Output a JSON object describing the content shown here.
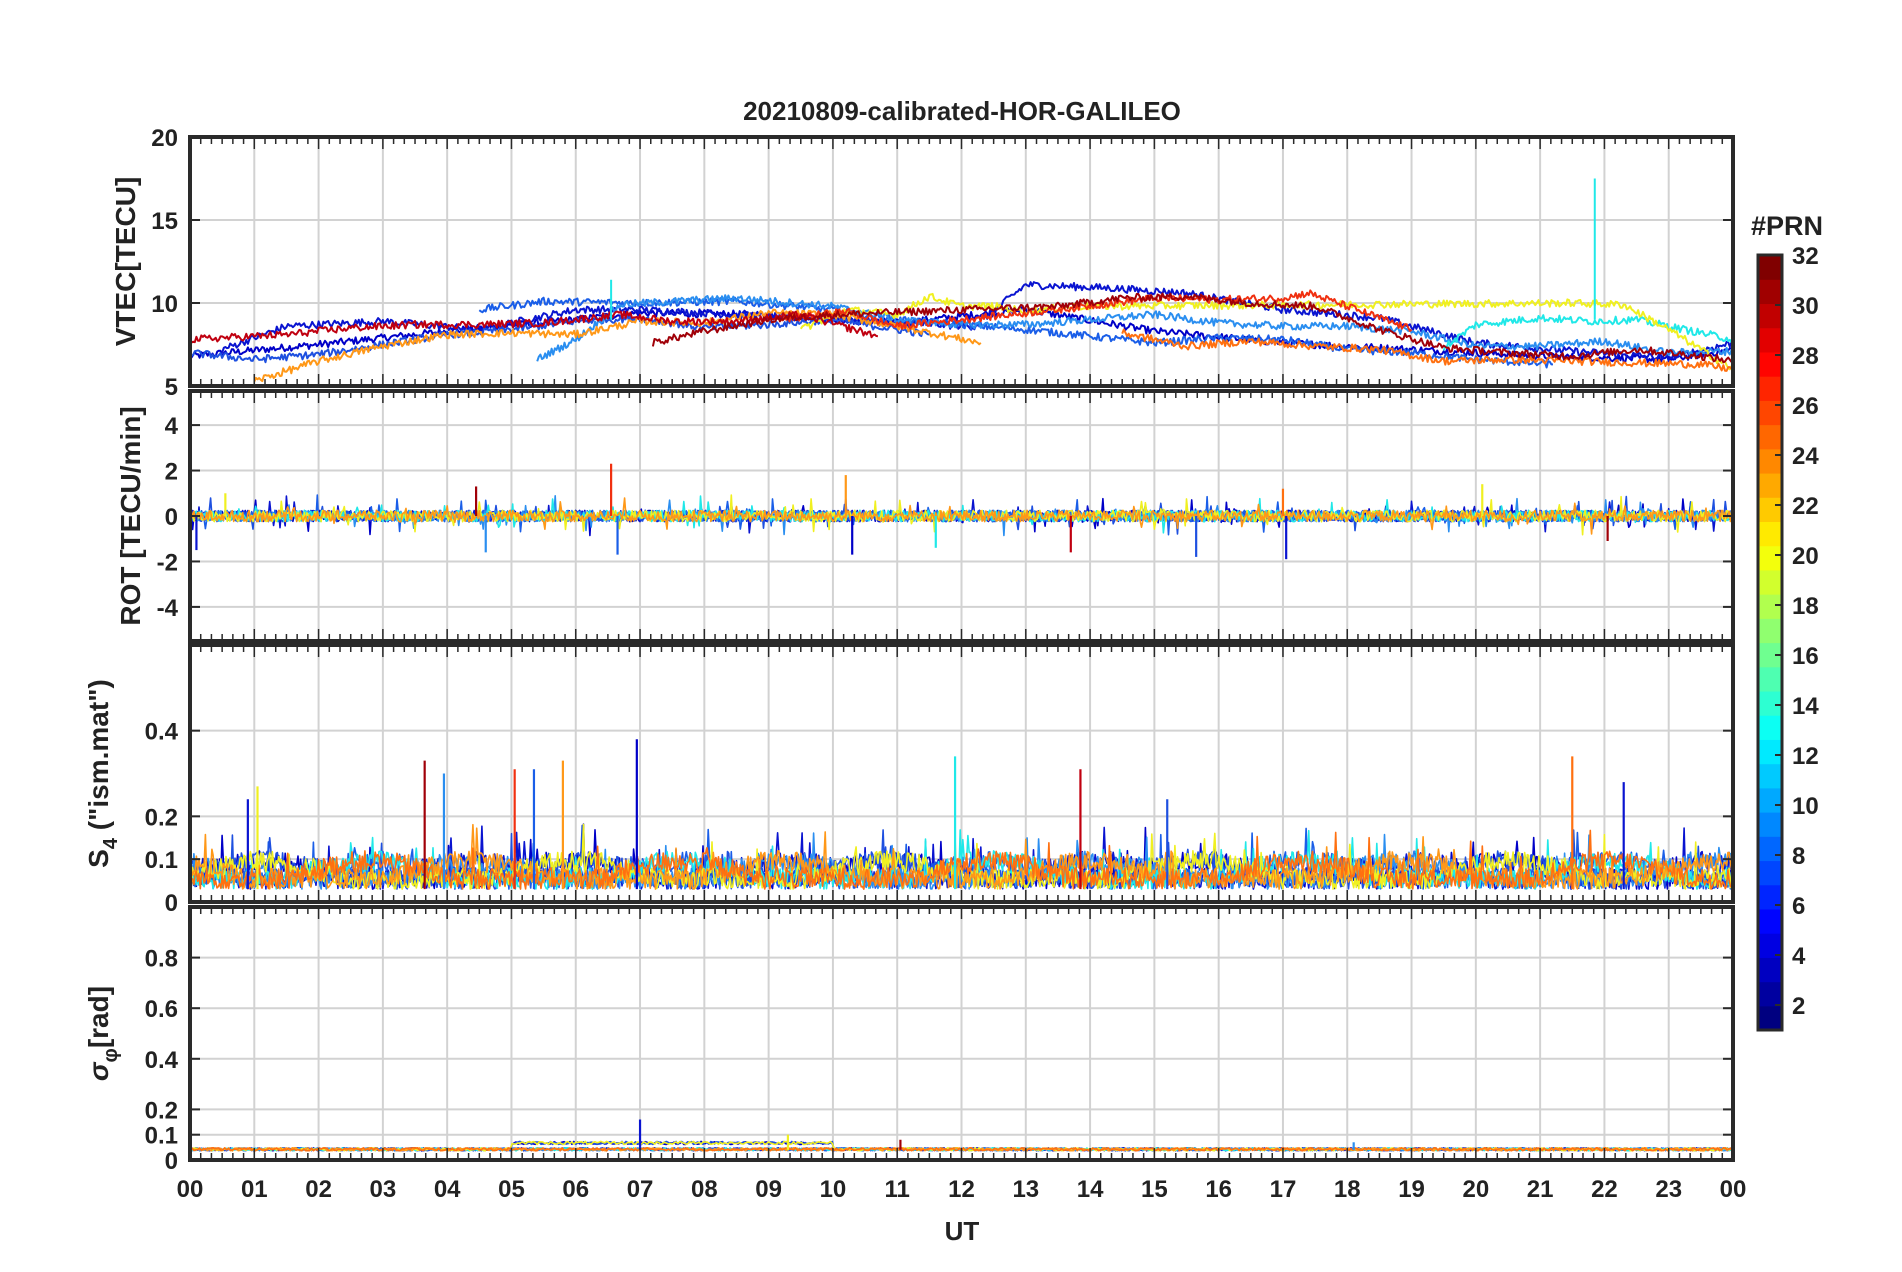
{
  "chart_data": {
    "type": "line",
    "title": "20210809-calibrated-HOR-GALILEO",
    "xlabel": "UT",
    "x_ticks": [
      "00",
      "01",
      "02",
      "03",
      "04",
      "05",
      "06",
      "07",
      "08",
      "09",
      "10",
      "11",
      "12",
      "13",
      "14",
      "15",
      "16",
      "17",
      "18",
      "19",
      "20",
      "21",
      "22",
      "23",
      "00"
    ],
    "xlim": [
      0,
      24
    ],
    "grid": true,
    "panels": [
      {
        "id": "vtec",
        "ylabel": "VTEC[TECU]",
        "ylim": [
          5,
          20
        ],
        "y_ticks": [
          5,
          10,
          15,
          20
        ],
        "y_tick_labels": [
          "5",
          "10",
          "15",
          "20"
        ],
        "series": [
          {
            "name": "PRN 2",
            "x": [
              0,
              2,
              4,
              6,
              7,
              9,
              11,
              13,
              15,
              17,
              19,
              21,
              23,
              24
            ],
            "y": [
              6.8,
              7.5,
              8.3,
              9.0,
              9.4,
              9.3,
              8.8,
              9.6,
              8.3,
              7.6,
              7.2,
              6.8,
              6.6,
              7.2
            ]
          },
          {
            "name": "PRN 4",
            "x": [
              0.5,
              1.5,
              3,
              4.5,
              6,
              7,
              9,
              11,
              12.2,
              13,
              14.3,
              15.5,
              17,
              18.5,
              20,
              21.5,
              23,
              24
            ],
            "y": [
              7.2,
              8.6,
              8.9,
              8.4,
              9.6,
              9.6,
              9.2,
              8.8,
              8.6,
              11.1,
              10.9,
              10.6,
              9.6,
              9.1,
              7.6,
              7.1,
              6.7,
              7.6
            ]
          },
          {
            "name": "PRN 7",
            "x": [
              4.5,
              5.5,
              7,
              8.5,
              10,
              11,
              12,
              13,
              14,
              15,
              16,
              17,
              18,
              19,
              20,
              21.2
            ],
            "y": [
              9.6,
              10.1,
              10.0,
              10.1,
              9.6,
              9.0,
              8.7,
              8.4,
              8.0,
              7.6,
              7.9,
              7.8,
              7.2,
              7.0,
              6.6,
              6.3
            ]
          },
          {
            "name": "PRN 9",
            "x": [
              0,
              1,
              2,
              3,
              4,
              5,
              6,
              7,
              8,
              9,
              10,
              11.5
            ],
            "y": [
              7.0,
              6.6,
              6.9,
              7.5,
              8.1,
              8.4,
              8.9,
              9.1,
              8.5,
              8.7,
              9.0,
              8.1
            ]
          },
          {
            "name": "PRN 10",
            "x": [
              5.4,
              6,
              6.7,
              7.5,
              8.5,
              10,
              11,
              12,
              13,
              14,
              15,
              16,
              17,
              18,
              19,
              20,
              21,
              22,
              23,
              24
            ],
            "y": [
              6.6,
              7.8,
              9.9,
              10.1,
              10.3,
              9.8,
              9.0,
              8.7,
              8.7,
              9.0,
              9.3,
              8.8,
              8.6,
              8.6,
              8.3,
              7.4,
              7.4,
              7.7,
              7.0,
              7.1
            ]
          },
          {
            "name": "PRN 13",
            "x": [
              19.5,
              20,
              21,
              21.8,
              22.5,
              23,
              24
            ],
            "y": [
              7.3,
              8.7,
              9.1,
              8.9,
              9.0,
              8.6,
              7.8
            ]
          },
          {
            "name": "PRN 20",
            "x": [
              9.5,
              10.2,
              11,
              11.5,
              12,
              12.5,
              13,
              13.8,
              21.5,
              22.3,
              23,
              24
            ],
            "y": [
              8.4,
              9.6,
              9.3,
              10.4,
              9.8,
              9.8,
              9.5,
              9.8,
              10.0,
              9.9,
              8.4,
              6.0
            ]
          },
          {
            "name": "PRN 23",
            "x": [
              1.0,
              2,
              3,
              4,
              5,
              6,
              7,
              8,
              9,
              10,
              11,
              12.3
            ],
            "y": [
              5.3,
              6.5,
              7.4,
              8.1,
              8.2,
              8.1,
              8.9,
              8.8,
              9.4,
              9.3,
              8.6,
              7.6
            ]
          },
          {
            "name": "PRN 25",
            "x": [
              14.5,
              15.5,
              16.5,
              17.5,
              18.5,
              19.5,
              20.5,
              21.5,
              22.5,
              23.5,
              24
            ],
            "y": [
              8.2,
              7.4,
              7.7,
              7.4,
              7.2,
              6.5,
              6.6,
              6.5,
              6.4,
              6.3,
              6.0
            ]
          },
          {
            "name": "PRN 27",
            "x": [
              9.2,
              10.2,
              11,
              13.5,
              15,
              16,
              17,
              17.4,
              18,
              19
            ],
            "y": [
              9.0,
              9.5,
              8.6,
              9.6,
              10.3,
              10.2,
              10.3,
              10.6,
              9.8,
              8.4
            ]
          },
          {
            "name": "PRN 30",
            "x": [
              0,
              1.5,
              2.5,
              3.5,
              4.5,
              5.5,
              6.7,
              7.5,
              8.5,
              9.5,
              10.7
            ],
            "y": [
              7.8,
              8.1,
              8.5,
              8.7,
              8.7,
              8.8,
              9.3,
              8.9,
              8.9,
              9.3,
              8.0
            ]
          },
          {
            "name": "PRN 31",
            "x": [
              7.2,
              8,
              9,
              10,
              13.5,
              14.5,
              15.5,
              16.5,
              17.5,
              18.5,
              19.5,
              20.5,
              21.5,
              22.5,
              23.5,
              24
            ],
            "y": [
              7.6,
              8.3,
              9.0,
              9.3,
              9.8,
              10.3,
              10.4,
              10.0,
              9.8,
              8.4,
              7.3,
              7.0,
              6.8,
              7.2,
              6.8,
              6.5
            ]
          }
        ]
      },
      {
        "id": "rot",
        "ylabel": "ROT [TECU/min]",
        "ylim": [
          -5.5,
          5.5
        ],
        "y_ticks": [
          -4,
          -2,
          0,
          2,
          4
        ],
        "y_tick_labels": [
          "-4",
          "-2",
          "0",
          "2",
          "4"
        ],
        "spikes": [
          {
            "x": 0.1,
            "y": -1.5
          },
          {
            "x": 0.55,
            "y": 1.0
          },
          {
            "x": 4.45,
            "y": 1.3
          },
          {
            "x": 4.6,
            "y": -1.6
          },
          {
            "x": 6.55,
            "y": 2.3
          },
          {
            "x": 6.65,
            "y": -1.7
          },
          {
            "x": 10.2,
            "y": 1.8
          },
          {
            "x": 10.3,
            "y": -1.7
          },
          {
            "x": 11.6,
            "y": -1.4
          },
          {
            "x": 13.7,
            "y": -1.6
          },
          {
            "x": 15.65,
            "y": -1.8
          },
          {
            "x": 17.0,
            "y": 1.2
          },
          {
            "x": 17.05,
            "y": -1.9
          },
          {
            "x": 20.1,
            "y": 1.4
          },
          {
            "x": 22.05,
            "y": -1.1
          }
        ]
      },
      {
        "id": "s4",
        "ylabel": "S4 (\"ism.mat\")",
        "ylabel_main": "S",
        "ylabel_sub": "4",
        "ylabel_rest": " (\"ism.mat\")",
        "ylim": [
          0,
          0.6
        ],
        "y_ticks": [
          0,
          0.1,
          0.2,
          0.4
        ],
        "y_tick_labels": [
          "0",
          "0.1",
          "0.2",
          "0.4"
        ],
        "spikes": [
          {
            "x": 0.9,
            "y": 0.24
          },
          {
            "x": 1.05,
            "y": 0.27
          },
          {
            "x": 3.65,
            "y": 0.33
          },
          {
            "x": 3.95,
            "y": 0.3
          },
          {
            "x": 5.05,
            "y": 0.31
          },
          {
            "x": 5.35,
            "y": 0.31
          },
          {
            "x": 5.8,
            "y": 0.33
          },
          {
            "x": 6.95,
            "y": 0.38
          },
          {
            "x": 11.9,
            "y": 0.34
          },
          {
            "x": 13.85,
            "y": 0.31
          },
          {
            "x": 15.2,
            "y": 0.24
          },
          {
            "x": 21.5,
            "y": 0.34
          },
          {
            "x": 22.3,
            "y": 0.28
          }
        ]
      },
      {
        "id": "sigma",
        "ylabel": "σφ[rad]",
        "ylabel_main": "σ",
        "ylabel_sub": "φ",
        "ylabel_rest": "[rad]",
        "ylim": [
          0,
          1
        ],
        "y_ticks": [
          0,
          0.1,
          0.2,
          0.4,
          0.6,
          0.8
        ],
        "y_tick_labels": [
          "0",
          "0.1",
          "0.2",
          "0.4",
          "0.6",
          "0.8"
        ],
        "spikes": [
          {
            "x": 7.0,
            "y": 0.16
          },
          {
            "x": 9.3,
            "y": 0.1
          },
          {
            "x": 11.05,
            "y": 0.08
          },
          {
            "x": 18.1,
            "y": 0.07
          }
        ]
      }
    ],
    "colorbar": {
      "label": "#PRN",
      "range": [
        1,
        32
      ],
      "ticks": [
        2,
        4,
        6,
        8,
        10,
        12,
        14,
        16,
        18,
        20,
        22,
        24,
        26,
        28,
        30,
        32
      ],
      "tick_labels": [
        "2",
        "4",
        "6",
        "8",
        "10",
        "12",
        "14",
        "16",
        "18",
        "20",
        "22",
        "24",
        "26",
        "28",
        "30",
        "32"
      ]
    },
    "prn_colors": {
      "2": "#0000c8",
      "4": "#0a14d0",
      "7": "#1a5ee8",
      "9": "#1e50e0",
      "10": "#2a8ef0",
      "13": "#20e8e8",
      "20": "#f0f020",
      "23": "#ff9818",
      "25": "#ff7010",
      "27": "#f03010",
      "30": "#c00010",
      "31": "#a00008"
    }
  }
}
